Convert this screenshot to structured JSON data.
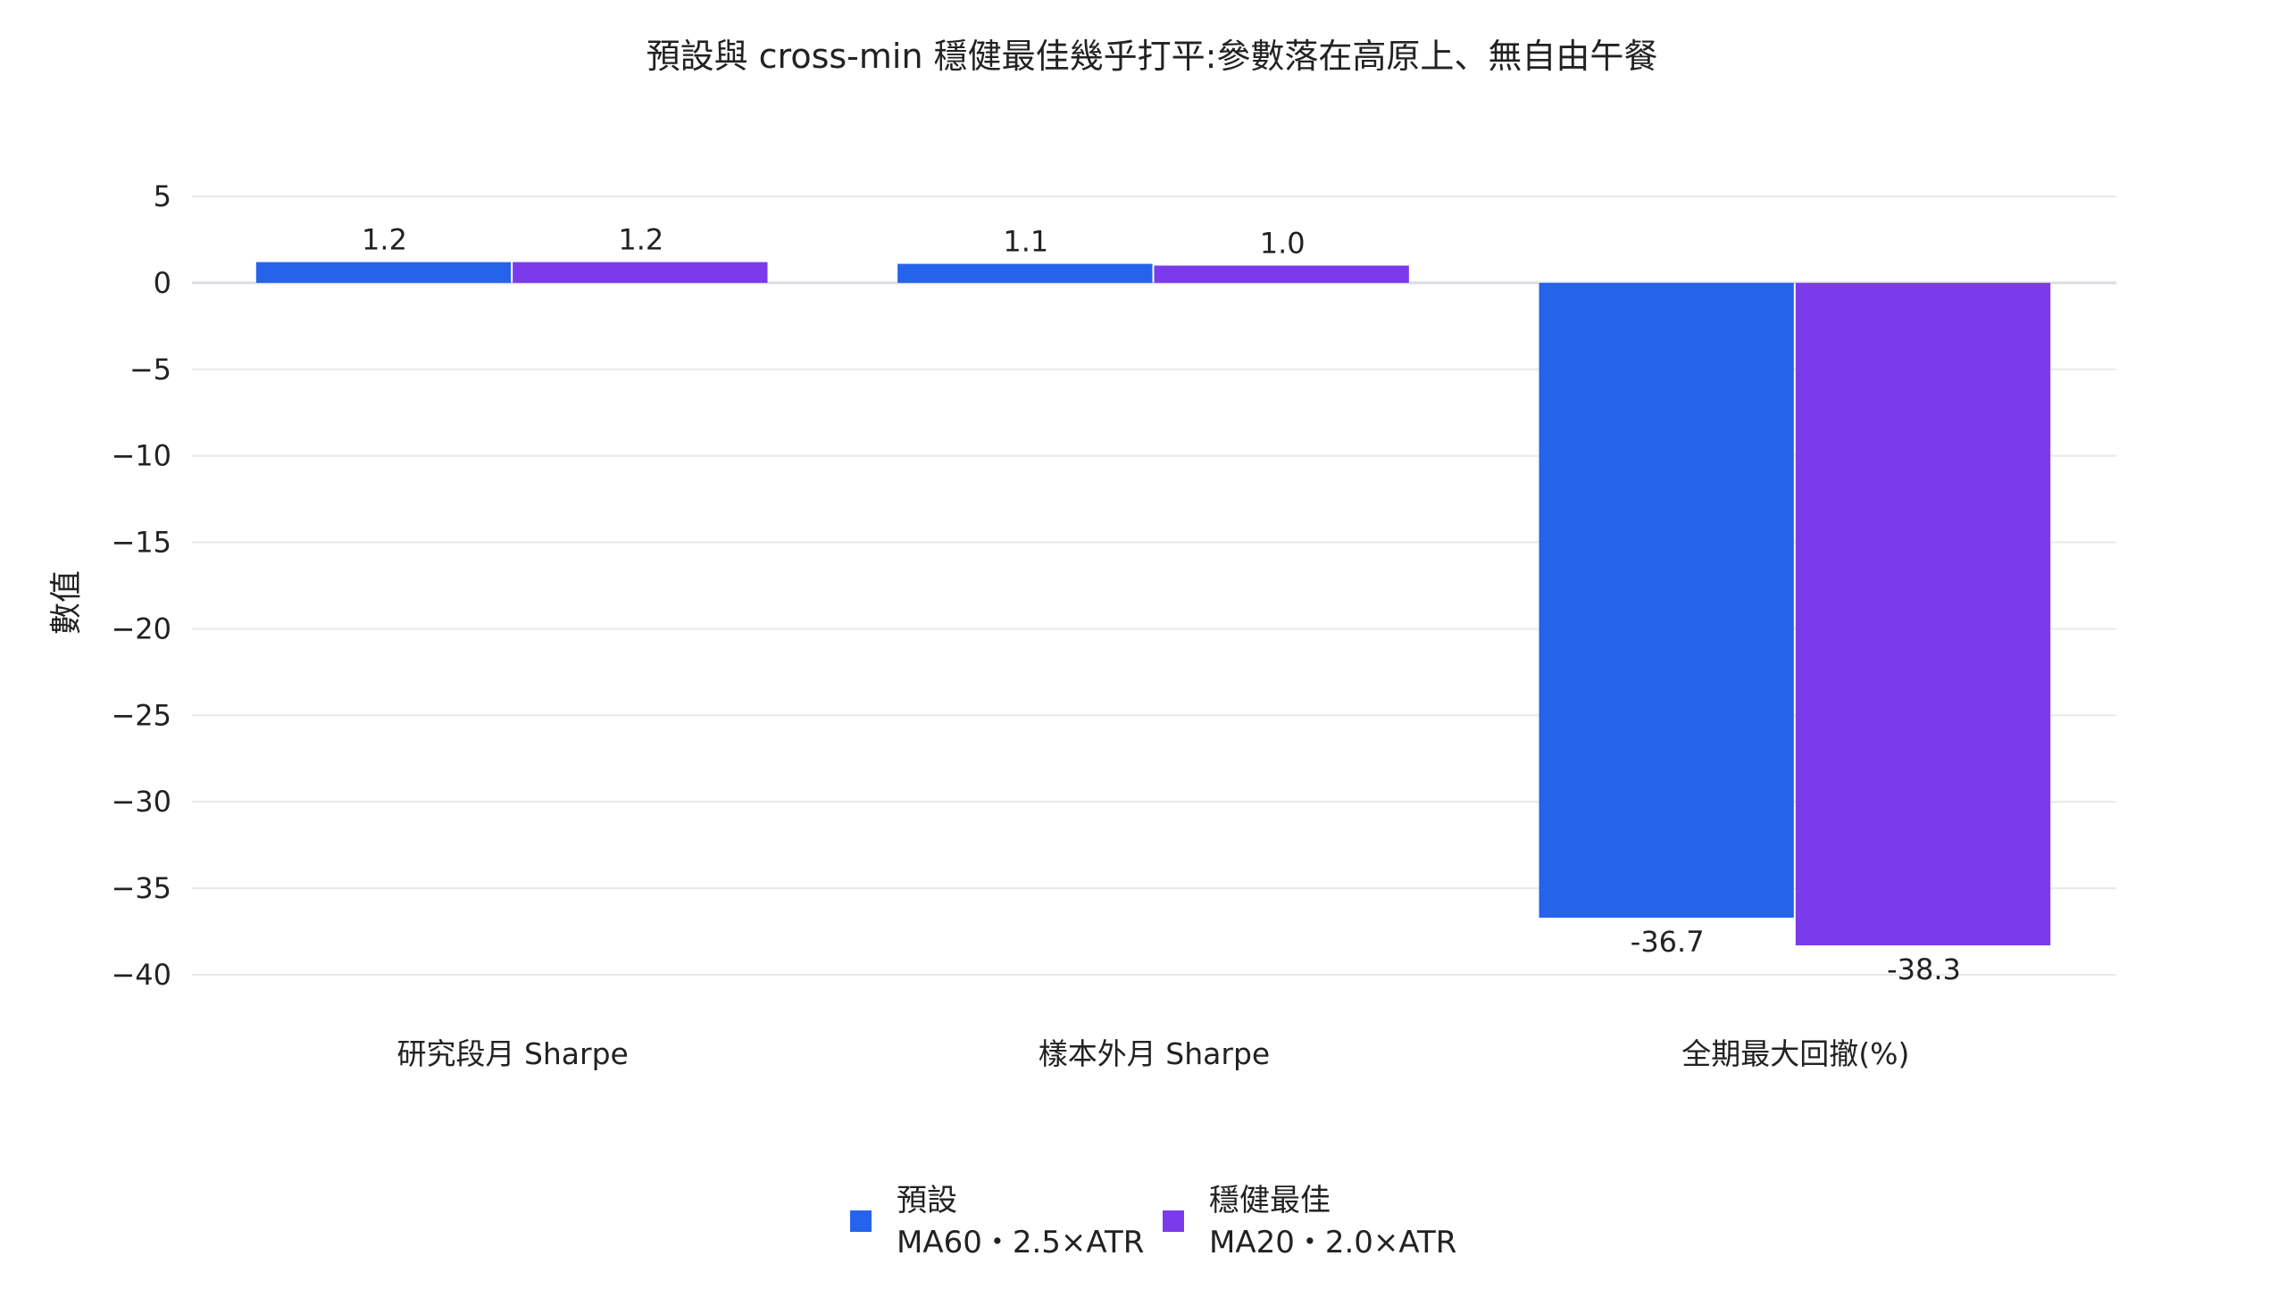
{
  "chart_data": {
    "type": "bar",
    "title": "預設與 cross-min 穩健最佳幾乎打平:參數落在高原上、無自由午餐",
    "xlabel": "",
    "ylabel": "數值",
    "ylim": [
      -40,
      5
    ],
    "yticks": [
      5,
      0,
      -5,
      -10,
      -15,
      -20,
      -25,
      -30,
      -35,
      -40
    ],
    "ytick_labels": [
      "5",
      "0",
      "−5",
      "−10",
      "−15",
      "−20",
      "−25",
      "−30",
      "−35",
      "−40"
    ],
    "categories": [
      "研究段月 Sharpe",
      "樣本外月 Sharpe",
      "全期最大回撤(%)"
    ],
    "grid": true,
    "legend_position": "bottom-center",
    "series": [
      {
        "name": "預設",
        "name_line2": "MA60・2.5×ATR",
        "color": "#2563eb",
        "values": [
          1.2,
          1.1,
          -36.7
        ],
        "labels": [
          "1.2",
          "1.1",
          "-36.7"
        ]
      },
      {
        "name": "穩健最佳",
        "name_line2": "MA20・2.0×ATR",
        "color": "#7c3aed",
        "values": [
          1.2,
          1.0,
          -38.3
        ],
        "labels": [
          "1.2",
          "1.0",
          "-38.3"
        ]
      }
    ]
  }
}
